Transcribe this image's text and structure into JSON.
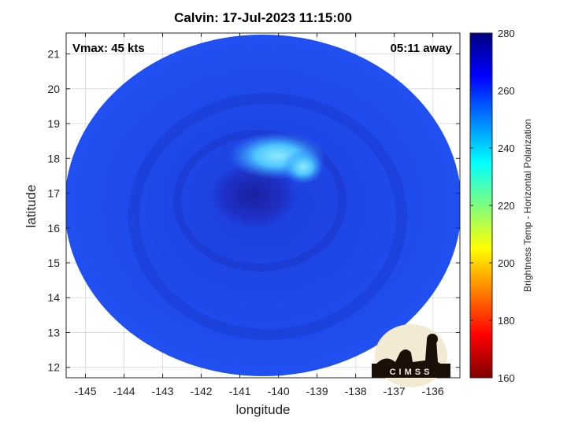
{
  "chart_data": {
    "type": "heatmap",
    "title": "Calvin: 17-Jul-2023 11:15:00",
    "annotations": {
      "vmax": "Vmax: 45 kts",
      "time_away": "05:11 away"
    },
    "xlabel": "longitude",
    "ylabel": "latitude",
    "xlim": [
      -145.5,
      -135.3
    ],
    "ylim": [
      11.7,
      21.6
    ],
    "xticks": [
      "-145",
      "-144",
      "-143",
      "-142",
      "-141",
      "-140",
      "-139",
      "-138",
      "-137",
      "-136"
    ],
    "xtick_values": [
      -145,
      -144,
      -143,
      -142,
      -141,
      -140,
      -139,
      -138,
      -137,
      -136
    ],
    "yticks": [
      "12",
      "13",
      "14",
      "15",
      "16",
      "17",
      "18",
      "19",
      "20",
      "21"
    ],
    "ytick_values": [
      12,
      13,
      14,
      15,
      16,
      17,
      18,
      19,
      20,
      21
    ],
    "grid": true,
    "center": {
      "lon": -140.6,
      "lat": 16.7
    },
    "colorbar": {
      "label": "Brightness Temp - Horizontal Polarization",
      "range": [
        160,
        280
      ],
      "ticks": [
        "160",
        "180",
        "200",
        "220",
        "240",
        "260",
        "280"
      ],
      "tick_values": [
        160,
        180,
        200,
        220,
        240,
        260,
        280
      ],
      "colormap": "jet"
    },
    "colors": {
      "ring": "#1b45ec",
      "cold_spot": "#1a1f9e",
      "warm_band": "#4ec6ff"
    },
    "logo": "CIMSS"
  }
}
